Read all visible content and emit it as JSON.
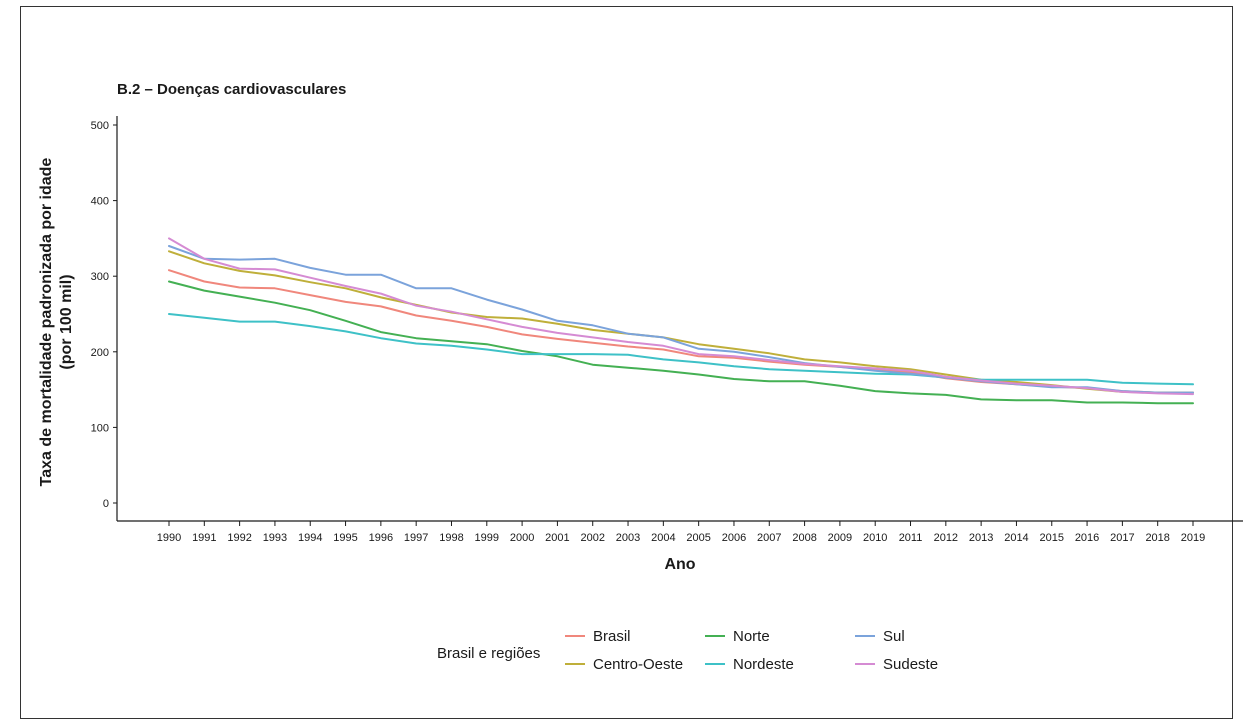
{
  "chart_data": {
    "type": "line",
    "subtitle": "B.2 – Doenças cardiovasculares",
    "xlabel": "Ano",
    "ylabel": [
      "Taxa de mortalidade padronizada por idade",
      "(por 100 mil)"
    ],
    "ylim": [
      0,
      500
    ],
    "yticks": [
      0,
      100,
      200,
      300,
      400,
      500
    ],
    "grid": false,
    "legend": {
      "title": "Brasil e regiões",
      "placement": "bottom"
    },
    "x": [
      1990,
      1991,
      1992,
      1993,
      1994,
      1995,
      1996,
      1997,
      1998,
      1999,
      2000,
      2001,
      2002,
      2003,
      2004,
      2005,
      2006,
      2007,
      2008,
      2009,
      2010,
      2011,
      2012,
      2013,
      2014,
      2015,
      2016,
      2017,
      2018,
      2019
    ],
    "series": [
      {
        "name": "Brasil",
        "color": "#F0877C",
        "values": [
          308,
          293,
          285,
          284,
          275,
          266,
          260,
          248,
          241,
          233,
          223,
          217,
          212,
          207,
          203,
          194,
          192,
          187,
          183,
          180,
          176,
          173,
          165,
          160,
          157,
          154,
          152,
          148,
          146,
          146
        ]
      },
      {
        "name": "Centro-Oeste",
        "color": "#BFAF3A",
        "values": [
          333,
          317,
          307,
          301,
          292,
          284,
          272,
          262,
          252,
          246,
          244,
          237,
          229,
          224,
          219,
          210,
          204,
          198,
          190,
          186,
          181,
          177,
          170,
          163,
          160,
          156,
          151,
          147,
          146,
          146
        ]
      },
      {
        "name": "Norte",
        "color": "#44B053",
        "values": [
          293,
          281,
          273,
          265,
          255,
          241,
          226,
          218,
          214,
          210,
          201,
          194,
          183,
          179,
          175,
          170,
          164,
          161,
          161,
          155,
          148,
          145,
          143,
          137,
          136,
          136,
          133,
          133,
          132,
          132
        ]
      },
      {
        "name": "Nordeste",
        "color": "#3EC1C7",
        "values": [
          250,
          245,
          240,
          240,
          234,
          227,
          218,
          211,
          208,
          203,
          197,
          197,
          197,
          196,
          190,
          186,
          181,
          177,
          175,
          173,
          171,
          170,
          166,
          163,
          163,
          163,
          163,
          159,
          158,
          157
        ]
      },
      {
        "name": "Sul",
        "color": "#7BA3DB",
        "values": [
          340,
          323,
          322,
          323,
          311,
          302,
          302,
          284,
          284,
          269,
          256,
          241,
          235,
          224,
          219,
          204,
          200,
          193,
          185,
          180,
          175,
          171,
          166,
          161,
          157,
          153,
          153,
          148,
          146,
          146
        ]
      },
      {
        "name": "Sudeste",
        "color": "#D58BD3",
        "values": [
          350,
          323,
          310,
          309,
          298,
          287,
          277,
          261,
          253,
          243,
          233,
          225,
          219,
          213,
          208,
          197,
          194,
          189,
          184,
          181,
          178,
          175,
          167,
          162,
          158,
          155,
          152,
          147,
          145,
          144
        ]
      }
    ]
  }
}
